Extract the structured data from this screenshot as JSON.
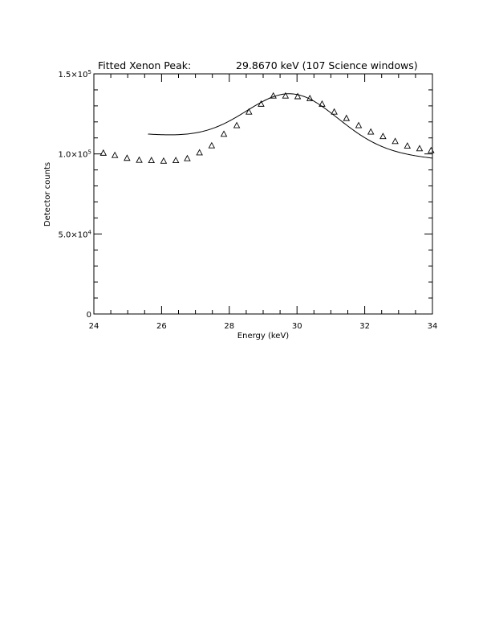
{
  "chart_data": {
    "type": "scatter",
    "title_left": "Fitted Xenon Peak:",
    "title_right": "29.8670 keV (107 Science windows)",
    "xlabel": "Energy (keV)",
    "ylabel": "Detector counts",
    "xlim": [
      24,
      34
    ],
    "ylim": [
      0,
      150000
    ],
    "x_ticks": [
      24,
      26,
      28,
      30,
      32,
      34
    ],
    "x_tick_labels": [
      "24",
      "26",
      "28",
      "30",
      "32",
      "34"
    ],
    "y_ticks": [
      {
        "value": 0,
        "mant": "0",
        "exp": ""
      },
      {
        "value": 50000,
        "mant": "5.0×10",
        "exp": "4"
      },
      {
        "value": 100000,
        "mant": "1.0×10",
        "exp": "5"
      },
      {
        "value": 150000,
        "mant": "1.5×10",
        "exp": "5"
      }
    ],
    "series": [
      {
        "marker": "triangle",
        "points": [
          [
            24.28,
            100400
          ],
          [
            24.62,
            99000
          ],
          [
            24.98,
            97200
          ],
          [
            25.34,
            96000
          ],
          [
            25.7,
            95800
          ],
          [
            26.06,
            95400
          ],
          [
            26.42,
            95800
          ],
          [
            26.76,
            97000
          ],
          [
            27.12,
            100600
          ],
          [
            27.48,
            105000
          ],
          [
            27.84,
            112200
          ],
          [
            28.22,
            117600
          ],
          [
            28.58,
            126100
          ],
          [
            28.94,
            131000
          ],
          [
            29.3,
            136100
          ],
          [
            29.66,
            136100
          ],
          [
            30.02,
            135700
          ],
          [
            30.38,
            134500
          ],
          [
            30.74,
            131000
          ],
          [
            31.1,
            126100
          ],
          [
            31.46,
            122100
          ],
          [
            31.82,
            117600
          ],
          [
            32.18,
            113600
          ],
          [
            32.54,
            110800
          ],
          [
            32.9,
            107700
          ],
          [
            33.26,
            104800
          ],
          [
            33.62,
            103200
          ],
          [
            33.96,
            102000
          ]
        ]
      },
      {
        "marker": "line",
        "fit": {
          "baseline": 104500,
          "slope_per_keV": -1800,
          "center": 29.867,
          "amplitude": 33000,
          "sigma": 1.35
        },
        "x_range": [
          25.6,
          34
        ]
      }
    ],
    "grid": false,
    "legend": "none"
  }
}
